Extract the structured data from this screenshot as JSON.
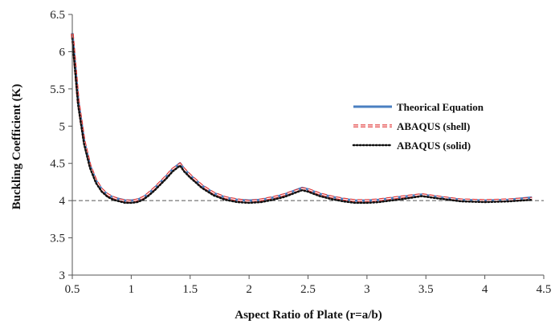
{
  "chart_data": {
    "type": "line",
    "title": "",
    "xlabel": "Aspect Ratio of Plate (r=a/b)",
    "ylabel": "Buckling Coefficient (K)",
    "xlim": [
      0.5,
      4.5
    ],
    "ylim": [
      3,
      6.5
    ],
    "xticks": [
      "0.5",
      "1",
      "1.5",
      "2",
      "2.5",
      "3",
      "3.5",
      "4",
      "4.5"
    ],
    "yticks": [
      "3",
      "3.5",
      "4",
      "4.5",
      "5",
      "5.5",
      "6",
      "6.5"
    ],
    "reference_line": {
      "y": 4,
      "style": "dashed",
      "color": "#555555"
    },
    "legend_position": "right-center",
    "grid": false,
    "x": [
      0.5,
      0.55,
      0.6,
      0.65,
      0.7,
      0.75,
      0.8,
      0.85,
      0.9,
      0.95,
      1.0,
      1.05,
      1.1,
      1.15,
      1.2,
      1.25,
      1.3,
      1.35,
      1.414,
      1.45,
      1.5,
      1.55,
      1.6,
      1.7,
      1.8,
      1.9,
      2.0,
      2.1,
      2.2,
      2.3,
      2.449,
      2.5,
      2.6,
      2.7,
      2.8,
      2.9,
      3.0,
      3.1,
      3.2,
      3.3,
      3.464,
      3.6,
      3.8,
      4.0,
      4.2,
      4.4
    ],
    "series": [
      {
        "name": "Theorical Equation",
        "color": "#4a7fc1",
        "style": "solid",
        "values": [
          6.25,
          5.34,
          4.8,
          4.47,
          4.27,
          4.15,
          4.08,
          4.04,
          4.02,
          4.0,
          4.0,
          4.01,
          4.04,
          4.1,
          4.17,
          4.25,
          4.33,
          4.42,
          4.5,
          4.42,
          4.34,
          4.27,
          4.2,
          4.1,
          4.04,
          4.01,
          4.0,
          4.01,
          4.04,
          4.08,
          4.17,
          4.15,
          4.09,
          4.05,
          4.02,
          4.0,
          4.0,
          4.01,
          4.03,
          4.05,
          4.08,
          4.05,
          4.01,
          4.0,
          4.01,
          4.04
        ]
      },
      {
        "name": "ABAQUS (shell)",
        "color": "#e03030",
        "style": "dashed",
        "values": [
          6.24,
          5.33,
          4.8,
          4.47,
          4.27,
          4.15,
          4.08,
          4.04,
          4.01,
          4.0,
          3.99,
          4.01,
          4.04,
          4.1,
          4.17,
          4.25,
          4.33,
          4.42,
          4.49,
          4.42,
          4.34,
          4.27,
          4.2,
          4.1,
          4.04,
          4.01,
          3.99,
          4.01,
          4.04,
          4.08,
          4.16,
          4.15,
          4.09,
          4.05,
          4.02,
          4.0,
          4.0,
          4.01,
          4.03,
          4.05,
          4.08,
          4.05,
          4.01,
          4.0,
          4.01,
          4.03
        ]
      },
      {
        "name": "ABAQUS (solid)",
        "color": "#111111",
        "style": "dotted",
        "values": [
          6.18,
          5.28,
          4.76,
          4.44,
          4.24,
          4.12,
          4.05,
          4.01,
          3.99,
          3.97,
          3.97,
          3.98,
          4.01,
          4.07,
          4.14,
          4.22,
          4.3,
          4.39,
          4.47,
          4.39,
          4.31,
          4.24,
          4.17,
          4.07,
          4.01,
          3.98,
          3.97,
          3.98,
          4.01,
          4.05,
          4.14,
          4.12,
          4.06,
          4.02,
          3.99,
          3.97,
          3.97,
          3.98,
          4.0,
          4.02,
          4.06,
          4.03,
          3.99,
          3.98,
          3.99,
          4.01
        ]
      }
    ]
  }
}
